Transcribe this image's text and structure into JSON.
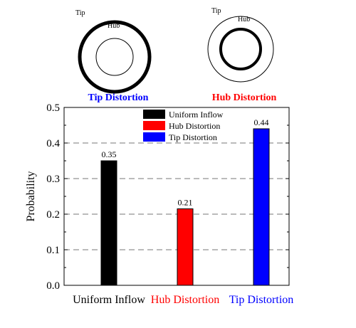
{
  "diagrams": {
    "tip": {
      "outer_label": "Tip",
      "inner_label": "Hub",
      "caption": "Tip Distortion",
      "caption_color": "#0000ff",
      "thick_ring": "outer"
    },
    "hub": {
      "outer_label": "Tip",
      "inner_label": "Hub",
      "caption": "Hub Distortion",
      "caption_color": "#ff0000",
      "thick_ring": "inner"
    }
  },
  "chart_data": {
    "type": "bar",
    "title": "",
    "xlabel": "",
    "ylabel": "Probability",
    "ylim": [
      0.0,
      0.5
    ],
    "yticks": [
      "0.0",
      "0.1",
      "0.2",
      "0.3",
      "0.4",
      "0.5"
    ],
    "grid": "dashed horizontal",
    "legend_position": "top-center",
    "categories": [
      "Uniform Inflow",
      "Hub Distortion",
      "Tip Distortion"
    ],
    "category_colors": [
      "#000000",
      "#ff0000",
      "#0000ff"
    ],
    "values": [
      0.35,
      0.215,
      0.44
    ],
    "value_labels": [
      "0.35",
      "0.21",
      "0.44"
    ],
    "legend": [
      {
        "label": "Uniform Inflow",
        "color": "#000000"
      },
      {
        "label": "Hub Distortion",
        "color": "#ff0000"
      },
      {
        "label": "Tip Distortion",
        "color": "#0000ff"
      }
    ]
  }
}
